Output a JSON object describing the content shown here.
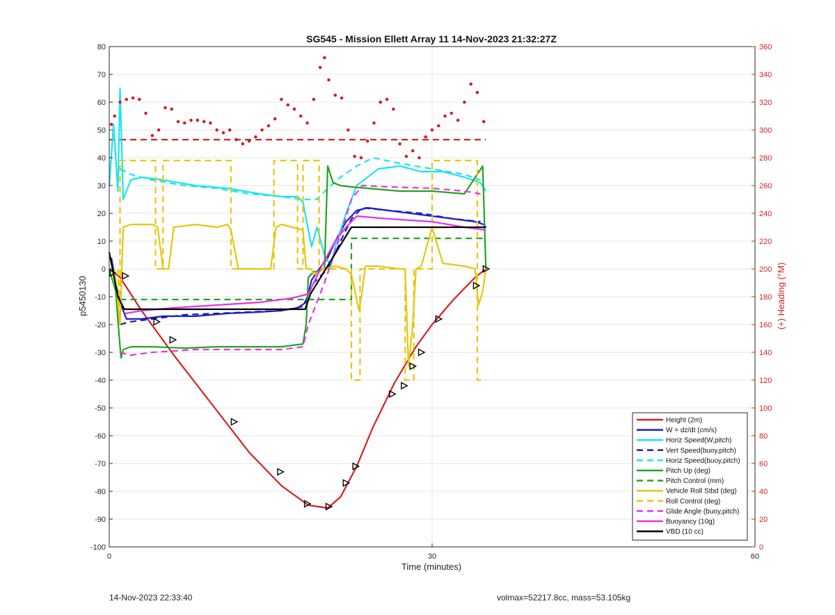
{
  "chart_data": {
    "type": "line",
    "title": "SG545 - Mission Ellett Array 11 14-Nov-2023 21:32:27Z",
    "xlabel": "Time (minutes)",
    "ylabel": "p5450130",
    "y2label": "(+) Heading (°M)",
    "xlim": [
      0,
      60
    ],
    "ylim": [
      -100,
      80
    ],
    "y2lim": [
      0,
      360
    ],
    "xticks": [
      "0",
      "30",
      "60"
    ],
    "yticks": [
      "-100",
      "-90",
      "-80",
      "-70",
      "-60",
      "-50",
      "-40",
      "-30",
      "-20",
      "-10",
      "0",
      "10",
      "20",
      "30",
      "40",
      "50",
      "60",
      "70",
      "80"
    ],
    "y2ticks": [
      "0",
      "20",
      "40",
      "60",
      "80",
      "100",
      "120",
      "140",
      "160",
      "180",
      "200",
      "220",
      "240",
      "260",
      "280",
      "300",
      "320",
      "340",
      "360"
    ],
    "grid": true,
    "legend_position": "bottom-right",
    "series": [
      {
        "name": "Height (2m)",
        "color": "#d42020",
        "style": "solid",
        "x": [
          0,
          1,
          3,
          6,
          10,
          13,
          16,
          18.5,
          20.3,
          21.5,
          23,
          24.5,
          26.5,
          28.5,
          30,
          32,
          34,
          35
        ],
        "values": [
          0,
          -3,
          -15,
          -31,
          -51,
          -66,
          -78,
          -85,
          -86,
          -82,
          -71,
          -57,
          -41,
          -28,
          -20,
          -11,
          -3,
          0
        ]
      },
      {
        "name": "W = dz/dt (cm/s)",
        "color": "#1c1cc4",
        "style": "solid",
        "x": [
          0.2,
          0.6,
          1,
          1.6,
          3,
          5,
          8,
          11,
          14,
          16,
          17.5,
          18.3,
          18.8,
          19.5,
          20.3,
          21,
          22,
          23,
          24,
          26,
          28,
          30,
          32,
          34,
          34.8,
          35
        ],
        "values": [
          4,
          -5,
          -12,
          -18,
          -18,
          -17,
          -17,
          -16,
          -15.5,
          -15,
          -14,
          -12,
          -4,
          0,
          4,
          10,
          17,
          21,
          22,
          21,
          20,
          19,
          18,
          17,
          16,
          15
        ]
      },
      {
        "name": "Horiz Speed(W,pitch)",
        "color": "#19e6f0",
        "style": "solid",
        "x": [
          0,
          0.4,
          0.8,
          1,
          1.3,
          2,
          3,
          5,
          8,
          11,
          14,
          16,
          17.5,
          18,
          18.4,
          18.8,
          19.3,
          20,
          20.6,
          21,
          22,
          23,
          25,
          27,
          29,
          31,
          33,
          34.5,
          35
        ],
        "values": [
          30,
          52,
          28,
          65,
          25,
          32,
          33,
          32,
          30,
          29,
          27,
          26,
          26,
          24,
          16,
          8,
          15,
          5,
          1,
          8,
          20,
          30,
          36,
          37,
          35,
          35,
          33,
          31,
          28
        ]
      },
      {
        "name": "Vert Speed(buoy,pitch)",
        "color": "#1c1cc4",
        "style": "dashed",
        "x": [
          1,
          2,
          4,
          7,
          10,
          13,
          16,
          18,
          19,
          20.3,
          21.5,
          22.5,
          23.5,
          26,
          29,
          32,
          34.5
        ],
        "values": [
          -20,
          -19,
          -18,
          -16.5,
          -16,
          -15.5,
          -15,
          -13.5,
          -5,
          0,
          10,
          18,
          22,
          21,
          20,
          18,
          17
        ]
      },
      {
        "name": "Horiz Speed(buoy,pitch)",
        "color": "#19e6f0",
        "style": "dashed",
        "x": [
          1,
          2,
          4,
          7,
          10,
          13,
          16,
          18,
          19.3,
          20.3,
          21.5,
          23,
          24.5,
          27,
          30,
          33,
          34.5
        ],
        "values": [
          36,
          34,
          32,
          30,
          29,
          27,
          26,
          25,
          25,
          29,
          33,
          37,
          40,
          38,
          36,
          34,
          32
        ]
      },
      {
        "name": "Pitch Up (deg)",
        "color": "#1fa51f",
        "style": "solid",
        "x": [
          0,
          0.6,
          1,
          1.1,
          1.3,
          2,
          4,
          7,
          10,
          13,
          16,
          18,
          18.3,
          18.5,
          19,
          19.5,
          20,
          20.3,
          20.8,
          21.5,
          22.5,
          24,
          27,
          30,
          33,
          34.7,
          35
        ],
        "values": [
          0,
          -8,
          -28,
          -32,
          -29,
          -28,
          -28,
          -28.5,
          -28,
          -28,
          -28,
          -27,
          -20,
          -3,
          -1,
          -1,
          0,
          37,
          31,
          30,
          29.5,
          29,
          28,
          28,
          27,
          37,
          0
        ]
      },
      {
        "name": "Pitch Control (mm)",
        "color": "#1fa51f",
        "style": "dashed",
        "x": [
          1,
          18.7,
          18.7,
          22.5,
          22.5,
          35
        ],
        "values": [
          -11,
          -11,
          -11,
          -11,
          11,
          11
        ]
      },
      {
        "name": "Vehicle Roll Stbd (deg)",
        "color": "#e6c60e",
        "style": "solid",
        "x": [
          0.5,
          1,
          1.3,
          2,
          4,
          4.5,
          5,
          5.5,
          6,
          8,
          10,
          11,
          11.3,
          12,
          15,
          15.5,
          16,
          18,
          18.3,
          18.8,
          19,
          19.5,
          20,
          21,
          22,
          22.5,
          23.2,
          23.5,
          23.8,
          25,
          27,
          27.5,
          27.8,
          28.2,
          28.5,
          29,
          30,
          31,
          33,
          34,
          34.3,
          34.7,
          35
        ],
        "values": [
          0,
          -20,
          15,
          16,
          16,
          15,
          0,
          0,
          15,
          16,
          15,
          16,
          14,
          0,
          0,
          15,
          16,
          14,
          0,
          0,
          -2,
          -1,
          0,
          1,
          0,
          -2,
          -15,
          -8,
          1,
          1,
          0,
          0,
          -35,
          -20,
          0,
          1,
          15,
          2,
          1,
          0,
          -13,
          -8,
          0
        ]
      },
      {
        "name": "Roll Control (deg)",
        "color": "#e6c60e",
        "style": "dashed",
        "x": [
          0.8,
          1,
          1,
          4.3,
          4.3,
          5,
          5,
          11.3,
          11.3,
          15.3,
          15.3,
          17.5,
          17.5,
          18,
          18,
          19.5,
          19.5,
          22.5,
          22.5,
          23.3,
          23.3,
          27.5,
          27.5,
          28.3,
          28.3,
          30,
          30,
          34.2,
          34.2,
          35
        ],
        "values": [
          0,
          -20,
          39,
          39,
          0,
          0,
          39,
          39,
          0,
          0,
          39,
          39,
          0,
          0,
          39,
          39,
          0,
          0,
          -40,
          -40,
          0,
          0,
          -40,
          -40,
          0,
          0,
          39,
          39,
          -40,
          -40
        ]
      },
      {
        "name": "Glide Angle (buoy,pitch)",
        "color": "#e632e6",
        "style": "dashed",
        "x": [
          1,
          2,
          4,
          8,
          12,
          16,
          18,
          18.5,
          20,
          21.3,
          22.5,
          23.5,
          26,
          30,
          33,
          34.5
        ],
        "values": [
          -30,
          -31,
          -30,
          -29,
          -29,
          -29,
          -28,
          -20,
          -5,
          10,
          25,
          30,
          29.5,
          29,
          28,
          27
        ]
      },
      {
        "name": "Buoyancy (10g)",
        "color": "#e632e6",
        "style": "solid",
        "x": [
          1.5,
          3,
          6,
          10,
          14,
          17,
          18.5,
          19,
          20,
          21,
          22,
          23,
          26,
          30,
          33,
          35
        ],
        "values": [
          -16,
          -15,
          -14,
          -13,
          -12,
          -10.5,
          -9,
          -5,
          3,
          10,
          15,
          19,
          18,
          17,
          15,
          14
        ]
      },
      {
        "name": "VBD (10 cc)",
        "color": "#000000",
        "style": "solid",
        "x": [
          0,
          0.4,
          0.8,
          1.4,
          18.2,
          18.7,
          22.5,
          35
        ],
        "values": [
          6,
          -2,
          -10,
          -14.5,
          -14.5,
          -9,
          15,
          15
        ]
      }
    ],
    "heading_points": {
      "name": "Heading",
      "color": "#d42020",
      "axis": "right",
      "x": [
        0.2,
        0.5,
        1,
        1.6,
        2.2,
        2.8,
        3.4,
        4,
        4.6,
        5.2,
        5.8,
        6.4,
        7,
        7.6,
        8.2,
        8.8,
        9.4,
        10,
        10.6,
        11.2,
        11.8,
        12.4,
        13,
        13.6,
        14.2,
        14.8,
        15.4,
        16,
        16.6,
        17.2,
        17.8,
        18.4,
        19,
        19.6,
        20,
        20.4,
        21,
        21.6,
        22.2,
        22.8,
        23.4,
        24,
        24.6,
        25.2,
        25.8,
        26.4,
        27,
        27.6,
        28.2,
        28.8,
        29.4,
        30,
        30.6,
        31.2,
        31.8,
        32.4,
        33,
        33.6,
        34.2,
        34.8
      ],
      "values": [
        304,
        310,
        320,
        322,
        323,
        322,
        312,
        296,
        300,
        316,
        315,
        306,
        305,
        307,
        307,
        306,
        305,
        300,
        298,
        300,
        293,
        290,
        292,
        295,
        300,
        303,
        308,
        322,
        318,
        315,
        310,
        305,
        322,
        345,
        352,
        336,
        325,
        323,
        300,
        281,
        280,
        292,
        305,
        320,
        322,
        315,
        290,
        281,
        285,
        280,
        295,
        300,
        303,
        310,
        312,
        307,
        320,
        333,
        327,
        306
      ]
    },
    "heading_reference": {
      "value": 293,
      "color": "#d42020",
      "style": "dashed"
    },
    "dive_markers": {
      "x": [
        0.3,
        1.5,
        4.4,
        5.9,
        11.6,
        15.9,
        18.4,
        20.4,
        22,
        22.9,
        26.3,
        27.4,
        28.2,
        29,
        30.6,
        34.1,
        35
      ],
      "values": [
        -1.5,
        -2.5,
        -19,
        -25.5,
        -55,
        -73,
        -84.5,
        -85.5,
        -77,
        -71,
        -45,
        -42,
        -35,
        -30,
        -18,
        -6,
        0
      ]
    }
  },
  "footer": {
    "left": "14-Nov-2023 22:33:40",
    "right": "volmax=52217.8cc, mass=53.105kg"
  }
}
